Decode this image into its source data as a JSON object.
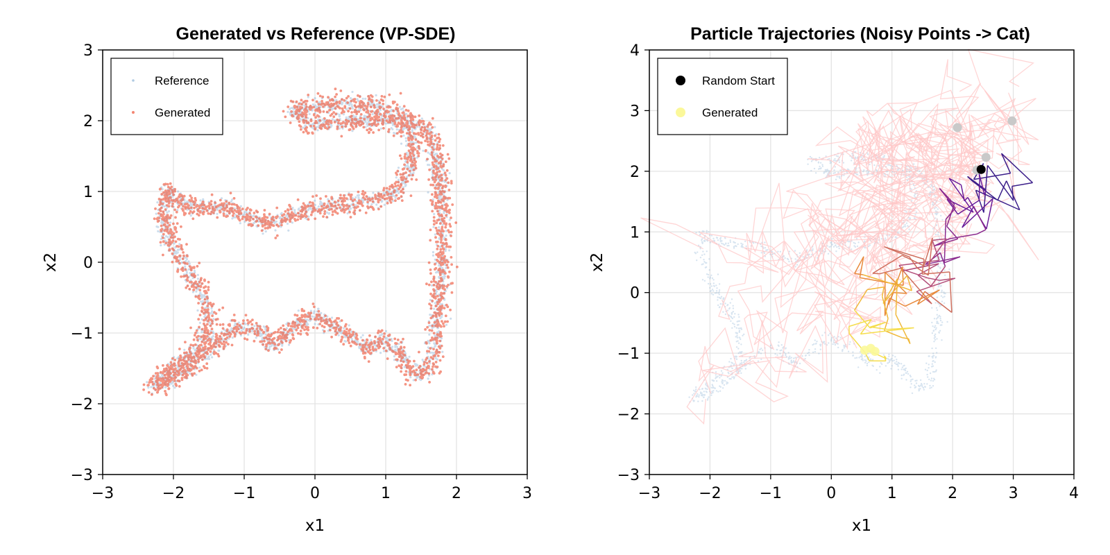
{
  "colors": {
    "reference": "#8fb4d6",
    "generated": "#f0684f",
    "grid": "#e3e3e3",
    "frame": "#000000",
    "ghost_path": "#ffc7c7",
    "start_gray": "#c9c9c9",
    "start_black": "#000000",
    "generated_end": "#fbf89a",
    "traj_palette": [
      "#3b1e8a",
      "#6a1c99",
      "#8a2a8e",
      "#b34e7a",
      "#cf6f5e",
      "#e8893b",
      "#f0b83a",
      "#f5dd4d"
    ]
  },
  "chart_data": [
    {
      "type": "scatter",
      "title": "Generated vs Reference (VP-SDE)",
      "xlabel": "x1",
      "ylabel": "x2",
      "xlim": [
        -3,
        3
      ],
      "ylim": [
        -3,
        3
      ],
      "xticks": [
        -3,
        -2,
        -1,
        0,
        1,
        2,
        3
      ],
      "yticks": [
        -3,
        -2,
        -1,
        0,
        1,
        2,
        3
      ],
      "xtick_labels": [
        "−3",
        "−2",
        "−1",
        "0",
        "1",
        "2",
        "3"
      ],
      "ytick_labels": [
        "−3",
        "−2",
        "−1",
        "0",
        "1",
        "2",
        "3"
      ],
      "grid": true,
      "legend_position": "top-left",
      "legend": [
        "Reference",
        "Generated"
      ],
      "shape_outline": [
        [
          -0.3,
          2.15
        ],
        [
          0.0,
          2.2
        ],
        [
          0.4,
          2.25
        ],
        [
          0.9,
          2.2
        ],
        [
          1.3,
          2.05
        ],
        [
          1.6,
          1.85
        ],
        [
          1.72,
          1.5
        ],
        [
          1.78,
          1.0
        ],
        [
          1.8,
          0.5
        ],
        [
          1.8,
          0.0
        ],
        [
          1.75,
          -0.5
        ],
        [
          1.7,
          -1.0
        ],
        [
          1.65,
          -1.5
        ],
        [
          1.4,
          -1.6
        ],
        [
          1.2,
          -1.25
        ],
        [
          1.0,
          -1.1
        ],
        [
          0.7,
          -1.2
        ],
        [
          0.4,
          -1.0
        ],
        [
          0.0,
          -0.75
        ],
        [
          -0.3,
          -0.9
        ],
        [
          -0.6,
          -1.2
        ],
        [
          -0.8,
          -0.95
        ],
        [
          -1.1,
          -0.9
        ],
        [
          -1.5,
          -1.25
        ],
        [
          -1.9,
          -1.6
        ],
        [
          -2.3,
          -1.75
        ],
        [
          -2.0,
          -1.5
        ],
        [
          -1.6,
          -1.2
        ],
        [
          -1.5,
          -0.9
        ],
        [
          -1.55,
          -0.5
        ],
        [
          -1.75,
          -0.2
        ],
        [
          -2.0,
          0.2
        ],
        [
          -2.15,
          0.6
        ],
        [
          -2.1,
          1.0
        ],
        [
          -1.9,
          0.85
        ],
        [
          -1.5,
          0.75
        ],
        [
          -1.2,
          0.8
        ],
        [
          -1.0,
          0.65
        ],
        [
          -0.7,
          0.55
        ],
        [
          -0.4,
          0.6
        ],
        [
          -0.1,
          0.75
        ],
        [
          0.3,
          0.8
        ],
        [
          0.7,
          0.85
        ],
        [
          1.1,
          0.95
        ],
        [
          1.35,
          1.3
        ],
        [
          1.4,
          1.65
        ],
        [
          1.3,
          1.9
        ],
        [
          1.0,
          2.0
        ],
        [
          0.6,
          2.0
        ],
        [
          0.2,
          1.95
        ],
        [
          -0.1,
          1.95
        ],
        [
          -0.3,
          2.15
        ]
      ],
      "series": [
        {
          "name": "Reference",
          "n_points": 2600,
          "spread": 0.055,
          "point_radius": 1.6,
          "opacity": 0.45
        },
        {
          "name": "Generated",
          "n_points": 2800,
          "spread": 0.075,
          "point_radius": 1.9,
          "opacity": 0.7
        }
      ]
    },
    {
      "type": "line",
      "title": "Particle Trajectories (Noisy Points -> Cat)",
      "xlabel": "x1",
      "ylabel": "x2",
      "xlim": [
        -3,
        4
      ],
      "ylim": [
        -3,
        4
      ],
      "xticks": [
        -3,
        -2,
        -1,
        0,
        1,
        2,
        3,
        4
      ],
      "yticks": [
        -3,
        -2,
        -1,
        0,
        1,
        2,
        3,
        4
      ],
      "xtick_labels": [
        "−3",
        "−2",
        "−1",
        "0",
        "1",
        "2",
        "3",
        "4"
      ],
      "ytick_labels": [
        "−3",
        "−2",
        "−1",
        "0",
        "1",
        "2",
        "3",
        "4"
      ],
      "grid": true,
      "legend_position": "top-left",
      "legend": [
        "Random Start",
        "Generated"
      ],
      "reference_outline_scale": 1.0,
      "reference_points": 1400,
      "ghost_trajectories": 12,
      "ghost_steps": 60,
      "start_points_gray": [
        [
          2.08,
          2.72
        ],
        [
          2.98,
          2.83
        ],
        [
          2.55,
          2.23
        ],
        [
          2.4,
          2.02
        ]
      ],
      "start_point_black": [
        2.47,
        2.03
      ],
      "highlight_trajectory": {
        "start": [
          2.47,
          2.03
        ],
        "end": [
          0.6,
          -0.95
        ],
        "steps": 120
      },
      "generated_points": [
        [
          0.55,
          -0.95
        ],
        [
          0.65,
          -0.92
        ],
        [
          0.72,
          -0.97
        ]
      ]
    }
  ]
}
